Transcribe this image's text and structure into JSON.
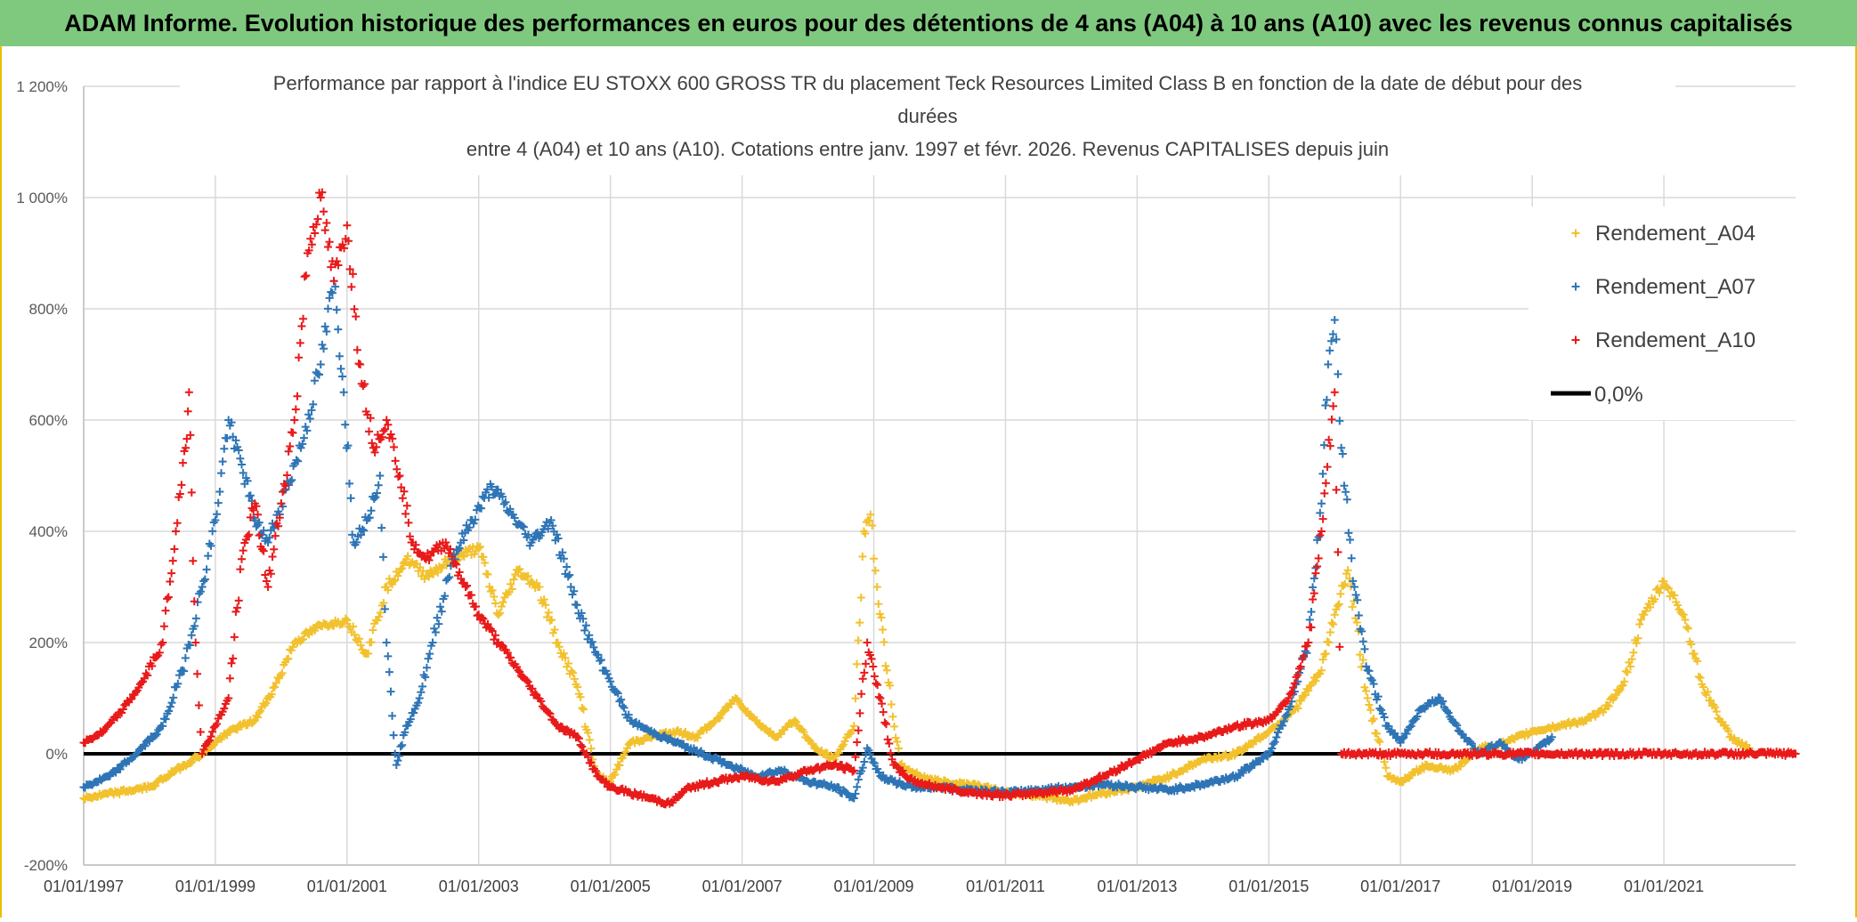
{
  "header": {
    "title": "ADAM Informe. Evolution historique des performances en euros pour des détentions de 4 ans (A04) à 10 ans (A10) avec les revenus connus capitalisés"
  },
  "chart_data": {
    "type": "scatter",
    "title_lines": [
      "Performance par rapport à l'indice EU STOXX 600 GROSS TR  du placement Teck Resources Limited Class B en fonction de la date de début pour des",
      "durées",
      "entre 4 (A04) et 10 ans (A10). Cotations entre janv. 1997 et févr. 2026. Revenus CAPITALISES depuis juin"
    ],
    "ylim": [
      -200,
      1200
    ],
    "y_ticks": [
      -200,
      0,
      200,
      400,
      600,
      800,
      1000,
      1200
    ],
    "y_tick_labels": [
      "-200%",
      "0%",
      "200%",
      "400%",
      "600%",
      "800%",
      "1 000%",
      "1 200%"
    ],
    "xlim": [
      1997.0,
      2023.0
    ],
    "x_ticks": [
      1997,
      1999,
      2001,
      2003,
      2005,
      2007,
      2009,
      2011,
      2013,
      2015,
      2017,
      2019,
      2021
    ],
    "x_tick_labels": [
      "01/01/1997",
      "01/01/1999",
      "01/01/2001",
      "01/01/2003",
      "01/01/2005",
      "01/01/2007",
      "01/01/2009",
      "01/01/2011",
      "01/01/2013",
      "01/01/2015",
      "01/01/2017",
      "01/01/2019",
      "01/01/2021"
    ],
    "grid": true,
    "legend_position": "top-right",
    "series": [
      {
        "name": "Rendement_A04",
        "color": "#f2c12e",
        "marker": "+",
        "x": [
          1997.0,
          1997.5,
          1998.0,
          1998.4,
          1998.8,
          1999.2,
          1999.6,
          1999.9,
          2000.2,
          2000.6,
          2001.0,
          2001.3,
          2001.6,
          2001.9,
          2002.2,
          2002.6,
          2003.0,
          2003.3,
          2003.6,
          2003.9,
          2004.2,
          2004.5,
          2004.8,
          2005.0,
          2005.3,
          2005.6,
          2006.0,
          2006.3,
          2006.6,
          2006.9,
          2007.2,
          2007.5,
          2007.8,
          2008.1,
          2008.4,
          2008.7,
          2008.85,
          2008.95,
          2009.05,
          2009.2,
          2009.4,
          2009.7,
          2010.0,
          2010.5,
          2011.0,
          2011.5,
          2012.0,
          2012.5,
          2013.0,
          2013.5,
          2014.0,
          2014.5,
          2015.0,
          2015.4,
          2015.8,
          2016.0,
          2016.2,
          2016.5,
          2016.8,
          2017.0,
          2017.4,
          2017.8,
          2018.2,
          2018.6,
          2019.0,
          2019.4,
          2019.8,
          2020.1,
          2020.4,
          2020.7,
          2021.0,
          2021.3,
          2021.6,
          2022.0,
          2022.3
        ],
        "y": [
          -80,
          -70,
          -60,
          -30,
          0,
          40,
          60,
          120,
          200,
          230,
          240,
          180,
          300,
          350,
          320,
          350,
          370,
          250,
          330,
          300,
          200,
          120,
          -40,
          -50,
          20,
          30,
          40,
          30,
          60,
          100,
          60,
          30,
          60,
          10,
          -10,
          50,
          400,
          430,
          300,
          150,
          -20,
          -40,
          -50,
          -55,
          -70,
          -75,
          -85,
          -70,
          -60,
          -40,
          -10,
          0,
          40,
          80,
          150,
          250,
          330,
          100,
          -40,
          -50,
          -20,
          -30,
          10,
          20,
          40,
          50,
          60,
          80,
          130,
          250,
          310,
          250,
          120,
          30,
          10
        ]
      },
      {
        "name": "Rendement_A07",
        "color": "#2e75b6",
        "marker": "+",
        "x": [
          1997.0,
          1997.4,
          1997.8,
          1998.2,
          1998.5,
          1998.8,
          1999.0,
          1999.2,
          1999.4,
          1999.6,
          1999.8,
          2000.0,
          2000.3,
          2000.6,
          2000.8,
          2000.95,
          2001.1,
          2001.3,
          2001.5,
          2001.6,
          2001.75,
          2001.9,
          2002.1,
          2002.3,
          2002.6,
          2002.9,
          2003.2,
          2003.5,
          2003.8,
          2004.1,
          2004.4,
          2004.7,
          2005.0,
          2005.3,
          2005.6,
          2006.0,
          2006.4,
          2006.8,
          2007.2,
          2007.6,
          2008.0,
          2008.4,
          2008.7,
          2008.9,
          2009.1,
          2009.3,
          2009.6,
          2010.0,
          2010.5,
          2011.0,
          2011.5,
          2012.0,
          2012.5,
          2013.0,
          2013.5,
          2014.0,
          2014.5,
          2015.0,
          2015.3,
          2015.6,
          2015.8,
          2015.9,
          2016.0,
          2016.1,
          2016.3,
          2016.5,
          2016.8,
          2017.0,
          2017.3,
          2017.6,
          2017.9,
          2018.2,
          2018.5,
          2018.8,
          2019.0,
          2019.3
        ],
        "y": [
          -60,
          -40,
          0,
          50,
          150,
          300,
          420,
          600,
          520,
          420,
          380,
          450,
          550,
          700,
          850,
          650,
          380,
          420,
          500,
          200,
          -20,
          50,
          100,
          200,
          350,
          420,
          480,
          430,
          380,
          420,
          300,
          200,
          130,
          60,
          40,
          20,
          0,
          -20,
          -40,
          -30,
          -50,
          -60,
          -80,
          10,
          -40,
          -50,
          -60,
          -60,
          -65,
          -70,
          -65,
          -60,
          -55,
          -60,
          -65,
          -55,
          -40,
          0,
          80,
          200,
          450,
          700,
          780,
          550,
          300,
          150,
          50,
          20,
          80,
          100,
          40,
          0,
          20,
          -10,
          0,
          30
        ]
      },
      {
        "name": "Rendement_A10",
        "color": "#e81a1a",
        "marker": "+",
        "x": [
          1997.0,
          1997.3,
          1997.6,
          1997.9,
          1998.2,
          1998.4,
          1998.55,
          1998.6,
          1998.7,
          1998.8,
          1999.0,
          1999.2,
          1999.4,
          1999.6,
          1999.8,
          2000.0,
          2000.2,
          2000.4,
          2000.6,
          2000.8,
          2001.0,
          2001.2,
          2001.4,
          2001.6,
          2001.8,
          2002.0,
          2002.2,
          2002.5,
          2002.8,
          2003.0,
          2003.3,
          2003.6,
          2003.9,
          2004.2,
          2004.5,
          2004.8,
          2005.0,
          2005.3,
          2005.6,
          2005.9,
          2006.2,
          2006.6,
          2007.0,
          2007.5,
          2008.0,
          2008.4,
          2008.7,
          2008.9,
          2009.1,
          2009.3,
          2009.6,
          2010.0,
          2010.5,
          2011.0,
          2011.5,
          2012.0,
          2012.5,
          2013.0,
          2013.5,
          2014.0,
          2014.5,
          2015.0,
          2015.3,
          2015.6,
          2015.8,
          2016.0,
          2016.1,
          2016.3,
          2016.6,
          2017.0,
          2018.0,
          2019.0,
          2020.0,
          2021.0,
          2022.0,
          2023.0
        ],
        "y": [
          20,
          40,
          80,
          130,
          200,
          400,
          550,
          650,
          200,
          0,
          50,
          100,
          350,
          450,
          300,
          450,
          600,
          900,
          1000,
          850,
          950,
          700,
          550,
          600,
          500,
          380,
          350,
          380,
          300,
          250,
          200,
          150,
          100,
          50,
          30,
          -40,
          -60,
          -70,
          -80,
          -90,
          -60,
          -50,
          -40,
          -50,
          -30,
          -20,
          -30,
          200,
          100,
          -20,
          -50,
          -60,
          -70,
          -75,
          -70,
          -65,
          -40,
          -10,
          20,
          30,
          50,
          60,
          100,
          200,
          400,
          650,
          0,
          0,
          0,
          0,
          0,
          0,
          0,
          0,
          0,
          0
        ]
      }
    ],
    "reference_line": {
      "name": "0,0%",
      "value": 0,
      "color": "#000000"
    }
  }
}
